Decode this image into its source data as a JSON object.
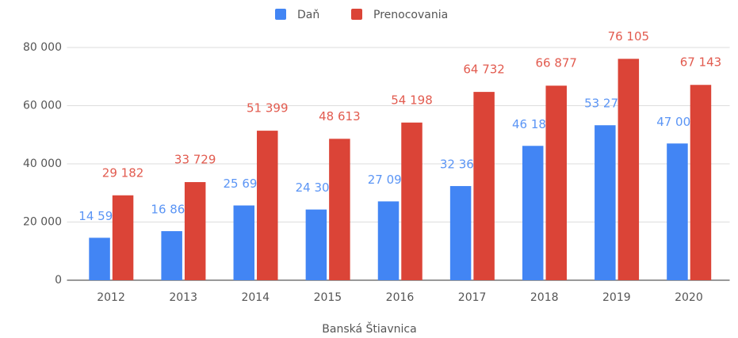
{
  "chart_data": {
    "type": "bar",
    "x_label": "Banská Štiavnica",
    "categories": [
      "2012",
      "2013",
      "2014",
      "2015",
      "2016",
      "2017",
      "2018",
      "2019",
      "2020"
    ],
    "series": [
      {
        "name": "Daň",
        "color": "#4285f4",
        "values": [
          14591,
          16864,
          25699,
          24306,
          27098,
          32366,
          46187,
          53274,
          47000
        ],
        "value_labels": [
          "14 591",
          "16 864",
          "25 699",
          "24 306",
          "27 098",
          "32 366",
          "46 187",
          "53 274",
          "47 000"
        ]
      },
      {
        "name": "Prenocovania",
        "color": "#db4437",
        "values": [
          29182,
          33729,
          51399,
          48613,
          54198,
          64732,
          66877,
          76105,
          67143
        ],
        "value_labels": [
          "29 182",
          "33 729",
          "51 399",
          "48 613",
          "54 198",
          "64 732",
          "66 877",
          "76 105",
          "67 143"
        ]
      }
    ],
    "ylim": [
      0,
      80000
    ],
    "yticks": [
      0,
      {
        "value": 20000,
        "label": "20 000"
      },
      {
        "value": 40000,
        "label": "40 000"
      },
      {
        "value": 60000,
        "label": "60 000"
      },
      {
        "value": 80000,
        "label": "80 000"
      }
    ],
    "grid": true,
    "legend": "top"
  }
}
